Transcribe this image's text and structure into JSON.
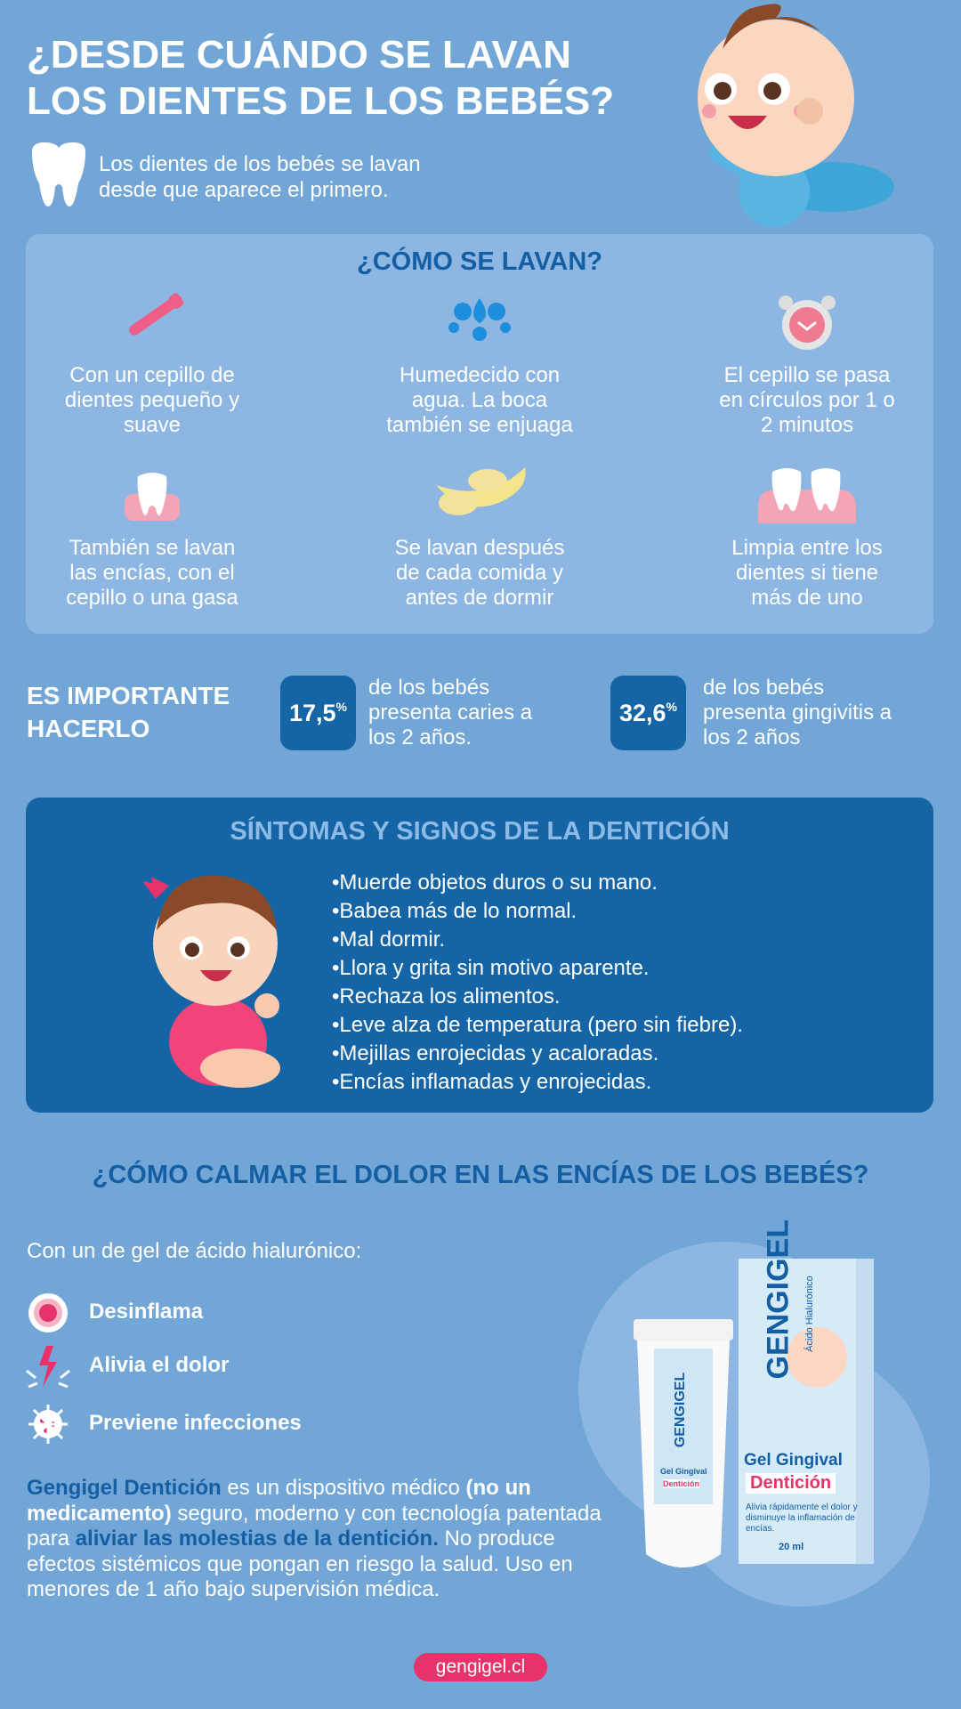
{
  "header": {
    "title_lines": [
      "¿DESDE CUÁNDO SE LAVAN",
      "LOS DIENTES DE LOS BEBÉS?"
    ],
    "subtitle_lines": [
      "Los dientes de los bebés se lavan",
      "desde que aparece el primero."
    ]
  },
  "how": {
    "title": "¿CÓMO SE LAVAN?",
    "items": [
      {
        "lines": [
          "Con un cepillo de",
          "dientes pequeño y",
          "suave"
        ]
      },
      {
        "lines": [
          "Humedecido con",
          "agua. La boca",
          "también se enjuaga"
        ]
      },
      {
        "lines": [
          "El cepillo se pasa",
          "en círculos por 1 o",
          "2 minutos"
        ]
      },
      {
        "lines": [
          "También se lavan",
          "las encías, con el",
          "cepillo o una gasa"
        ]
      },
      {
        "lines": [
          "Se lavan después",
          "de cada comida y",
          "antes de dormir"
        ]
      },
      {
        "lines": [
          "Limpia entre los",
          "dientes si tiene",
          "más de uno"
        ]
      }
    ]
  },
  "important": {
    "title_lines": [
      "ES IMPORTANTE",
      "HACERLO"
    ],
    "stats": [
      {
        "number": "17,5",
        "unit": "%",
        "lines": [
          "de los bebés",
          "presenta caries a",
          "los 2 años."
        ]
      },
      {
        "number": "32,6",
        "unit": "%",
        "lines": [
          "de los bebés",
          "presenta gingivitis a",
          "los 2 años"
        ]
      }
    ]
  },
  "symptoms": {
    "title": "SÍNTOMAS Y SIGNOS DE LA DENTICIÓN",
    "items": [
      "•Muerde objetos duros o su mano.",
      "•Babea más de lo normal.",
      "•Mal dormir.",
      "•Llora y grita sin motivo aparente.",
      "•Rechaza los alimentos.",
      "•Leve alza de temperatura (pero sin fiebre).",
      "•Mejillas enrojecidas y acaloradas.",
      "•Encías inflamadas y enrojecidas."
    ]
  },
  "relief": {
    "title": "¿CÓMO CALMAR EL DOLOR EN LAS ENCÍAS DE LOS BEBÉS?",
    "intro": "Con un de gel de ácido hialurónico:",
    "benefits": [
      "Desinflama",
      "Alivia el dolor",
      "Previene infecciones"
    ],
    "paragraph": [
      {
        "text": "Gengigel Dentición"
      },
      {
        "text": " es un dispositivo médico "
      },
      {
        "text": "(no un medicamento)"
      },
      {
        "text": " seguro, moderno y con tecnología patentada para "
      },
      {
        "text": "aliviar las molestias de la dentición."
      },
      {
        "text": " No produce efectos sistémicos que pongan en riesgo la salud. Uso en menores de 1 año bajo supervisión médica."
      }
    ]
  },
  "product": {
    "brand": "GENGIGEL",
    "subbrand": "Ácido Hialurónico",
    "line": "Gel Gingival",
    "variant": "Dentición",
    "claim": "Alivia rápidamente el dolor y disminuye la inflamación de encías.",
    "size": "20 ml"
  },
  "footer": {
    "url": "gengigel.cl"
  }
}
